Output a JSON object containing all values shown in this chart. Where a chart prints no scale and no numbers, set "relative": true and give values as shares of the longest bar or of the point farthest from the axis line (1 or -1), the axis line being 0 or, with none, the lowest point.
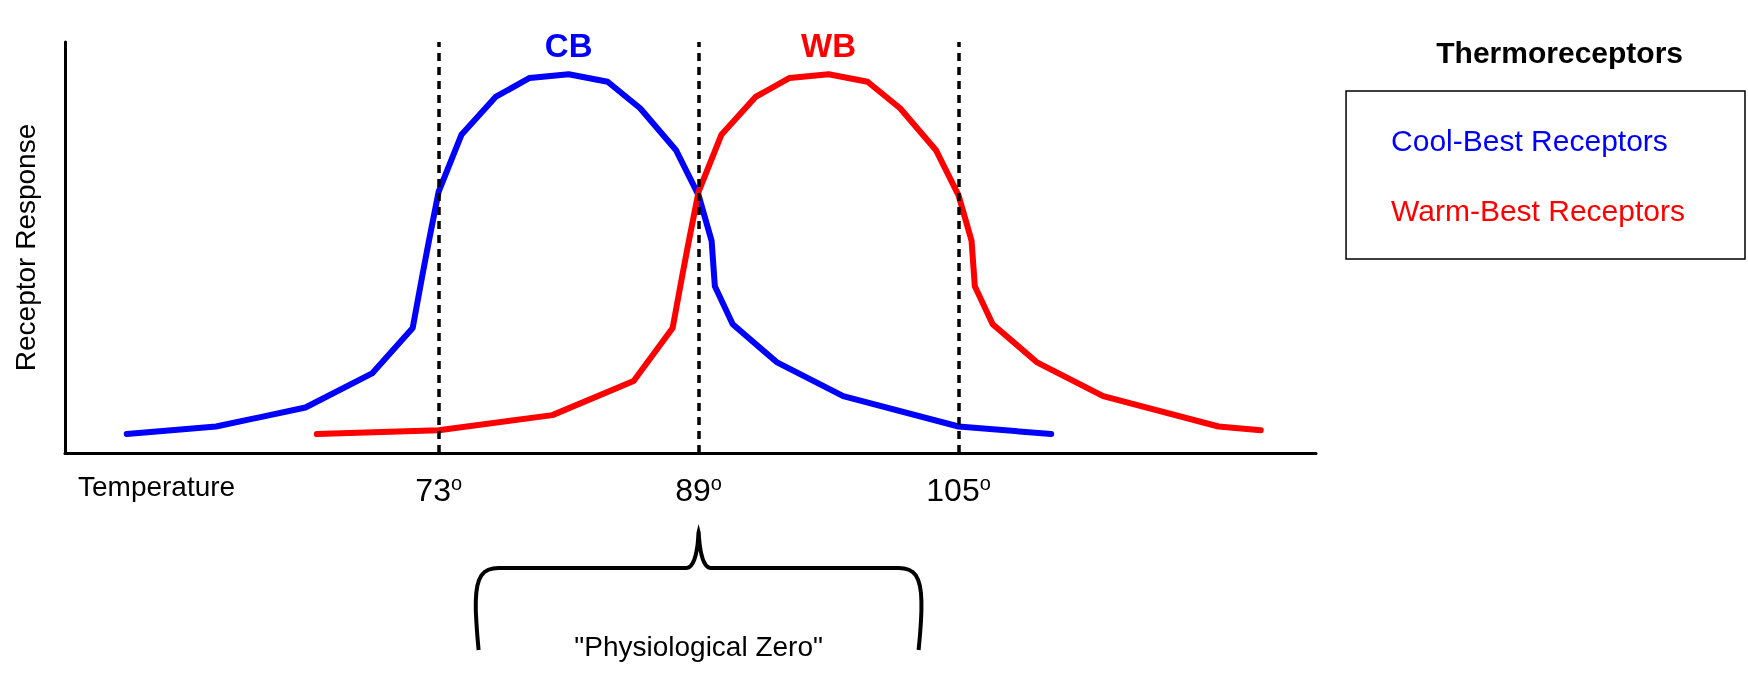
{
  "chart_data": {
    "type": "line",
    "relative": true,
    "xlabel": "Temperature",
    "ylabel": "Receptor Response",
    "legend_title": "Thermoreceptors",
    "legend": "top right",
    "grid": false,
    "marker": "none",
    "line_style": "solid",
    "xlim": [
      50,
      127
    ],
    "xticks": [
      {
        "value": 73,
        "label": "73$^{o}$"
      },
      {
        "value": 89,
        "label": "89$^{o}$"
      },
      {
        "value": 105,
        "label": "105$^{o}$"
      }
    ],
    "series": [
      {
        "name": "Cool-Best Receptors",
        "color": "#0000ff",
        "x": [
          53.8,
          59.3,
          64.8,
          68.9,
          71.4,
          72.0,
          72.4,
          73,
          74.4,
          76.5,
          78.6,
          81,
          83.4,
          85.4,
          87.6,
          89,
          89.8,
          90,
          91.1,
          93.8,
          97.9,
          105,
          110.7
        ],
        "values": [
          0.05,
          0.07,
          0.12,
          0.21,
          0.33,
          0.47,
          0.56,
          0.69,
          0.84,
          0.94,
          0.99,
          1,
          0.98,
          0.91,
          0.8,
          0.68,
          0.56,
          0.44,
          0.34,
          0.24,
          0.15,
          0.07,
          0.05
        ]
      },
      {
        "name": "Warm-Best Receptors",
        "color": "#ff0000",
        "x": [
          65.5,
          73,
          80,
          85,
          87.4,
          88,
          88.4,
          89,
          90.4,
          92.5,
          94.6,
          97,
          99.4,
          101.4,
          103.6,
          105,
          105.8,
          106,
          107.1,
          109.8,
          113.9,
          121,
          123.6
        ],
        "values": [
          0.05,
          0.06,
          0.1,
          0.19,
          0.33,
          0.47,
          0.56,
          0.69,
          0.84,
          0.94,
          0.99,
          1,
          0.98,
          0.91,
          0.8,
          0.68,
          0.56,
          0.44,
          0.34,
          0.24,
          0.15,
          0.07,
          0.06
        ]
      }
    ],
    "ref_lines": [
      {
        "axis": "x",
        "value": 73,
        "color": "#000000",
        "line_style": "dashed"
      },
      {
        "axis": "x",
        "value": 89,
        "color": "#000000",
        "line_style": "dashed"
      },
      {
        "axis": "x",
        "value": 105,
        "color": "#000000",
        "line_style": "dashed"
      }
    ],
    "annotations": [
      "CB",
      "WB",
      "\"Physiological Zero\""
    ]
  }
}
